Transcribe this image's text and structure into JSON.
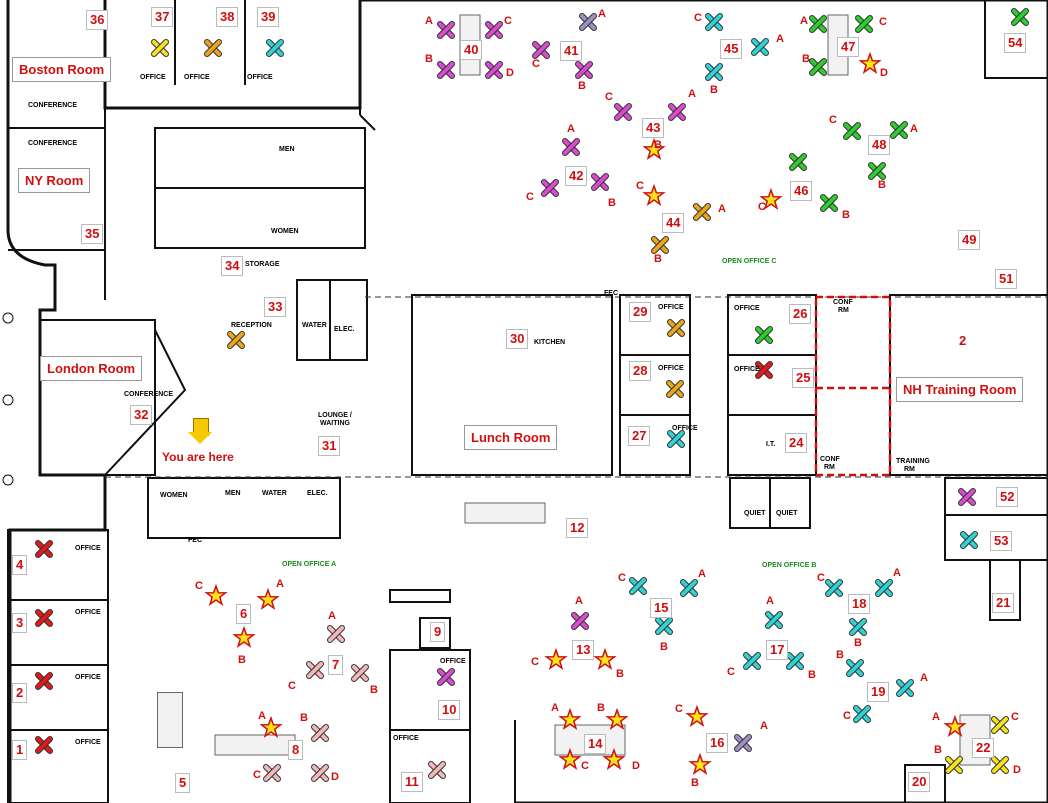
{
  "rooms": {
    "boston": "Boston Room",
    "ny": "NY  Room",
    "london": "London Room",
    "nh_training": "NH Training Room",
    "lunch": "Lunch Room"
  },
  "you_are_here": "You are here",
  "labels": {
    "office": "OFFICE",
    "conference": "CONFERENCE",
    "men": "MEN",
    "women": "WOMEN",
    "storage": "STORAGE",
    "reception": "RECEPTION",
    "water": "WATER",
    "elec": "ELEC.",
    "lounge": "LOUNGE /",
    "waiting": "WAITING",
    "kitchen": "KITCHEN",
    "open_office_a": "OPEN OFFICE A",
    "open_office_b": "OPEN OFFICE B",
    "open_office_c": "OPEN OFFICE C",
    "conf_rm": "CONF",
    "rm": "RM",
    "training_rm": "TRAINING",
    "quiet": "QUIET",
    "lt": "I.T.",
    "fec": "FEC"
  },
  "numbers": [
    "1",
    "2",
    "3",
    "4",
    "5",
    "6",
    "7",
    "8",
    "9",
    "10",
    "11",
    "12",
    "13",
    "14",
    "15",
    "16",
    "17",
    "18",
    "19",
    "20",
    "21",
    "22",
    "24",
    "25",
    "26",
    "27",
    "28",
    "29",
    "30",
    "31",
    "32",
    "33",
    "34",
    "35",
    "36",
    "37",
    "38",
    "39",
    "40",
    "41",
    "42",
    "43",
    "44",
    "45",
    "46",
    "47",
    "48",
    "49",
    "51",
    "52",
    "53",
    "54"
  ],
  "letters": [
    "A",
    "B",
    "C",
    "D"
  ],
  "marker_colors": {
    "red": "#e01b1b",
    "yellow": "#f5e21a",
    "orange": "#e8a61a",
    "cyan": "#2fd3d6",
    "green": "#2ecc2e",
    "magenta": "#d94cd0",
    "pink": "#f2b8b8",
    "blue": "#2f8fd6",
    "purple": "#9c8fc4",
    "star": "#ffe21a"
  },
  "icons": [
    "x-marker",
    "star-marker",
    "down-arrow-icon"
  ]
}
